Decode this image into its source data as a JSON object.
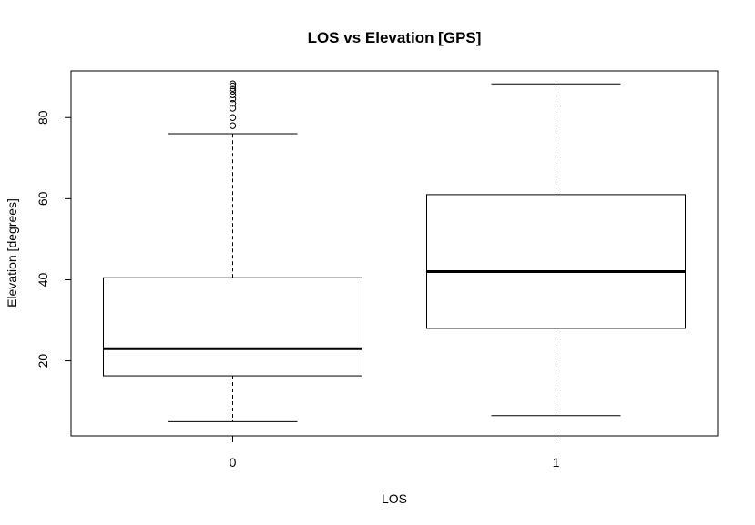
{
  "chart_data": {
    "type": "boxplot",
    "title": "LOS vs Elevation [GPS]",
    "xlabel": "LOS",
    "ylabel": "Elevation [degrees]",
    "ylim": [
      1.5,
      91.5
    ],
    "yticks": [
      20,
      40,
      60,
      80
    ],
    "categories": [
      "0",
      "1"
    ],
    "boxes": [
      {
        "category": "0",
        "whisker_low": 5,
        "q1": 16.3,
        "median": 23,
        "q3": 40.5,
        "whisker_high": 76,
        "outliers": [
          78,
          80,
          82.3,
          83.5,
          84.6,
          85.6,
          86.5,
          87.2,
          87.8,
          88.3
        ]
      },
      {
        "category": "1",
        "whisker_low": 6.5,
        "q1": 28,
        "median": 42,
        "q3": 61,
        "whisker_high": 88.3,
        "outliers": []
      }
    ],
    "grid": false,
    "legend": "none",
    "colors": {
      "stroke": "#000000",
      "background": "#ffffff"
    }
  }
}
